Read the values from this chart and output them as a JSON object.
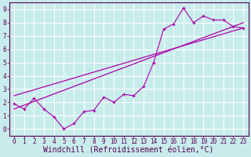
{
  "xlabel": "Windchill (Refroidissement éolien,°C)",
  "bg_color": "#c8ecec",
  "grid_color": "#ffffff",
  "line_color": "#aa00aa",
  "xlim": [
    -0.5,
    23.5
  ],
  "ylim": [
    -0.5,
    9.5
  ],
  "xticks": [
    0,
    1,
    2,
    3,
    4,
    5,
    6,
    7,
    8,
    9,
    10,
    11,
    12,
    13,
    14,
    15,
    16,
    17,
    18,
    19,
    20,
    21,
    22,
    23
  ],
  "yticks": [
    0,
    1,
    2,
    3,
    4,
    5,
    6,
    7,
    8,
    9
  ],
  "series1_x": [
    0,
    1,
    2,
    3,
    4,
    5,
    6,
    7,
    8,
    9,
    10,
    11,
    12,
    13,
    14,
    15,
    16,
    17,
    18,
    19,
    20,
    21,
    22,
    23
  ],
  "series1_y": [
    1.9,
    1.5,
    2.3,
    1.5,
    0.9,
    0.0,
    0.4,
    1.3,
    1.4,
    2.4,
    2.0,
    2.6,
    2.5,
    3.2,
    5.0,
    7.5,
    7.9,
    9.1,
    8.0,
    8.5,
    8.2,
    8.2,
    7.7,
    7.6
  ],
  "line2_x": [
    0,
    23
  ],
  "line2_y": [
    1.5,
    8.0
  ],
  "line3_x": [
    0,
    23
  ],
  "line3_y": [
    2.5,
    7.6
  ],
  "font_name": "monospace",
  "tick_fontsize": 5.5,
  "xlabel_fontsize": 7.0,
  "spine_color": "#550055",
  "tick_color": "#550055",
  "label_color": "#550055"
}
